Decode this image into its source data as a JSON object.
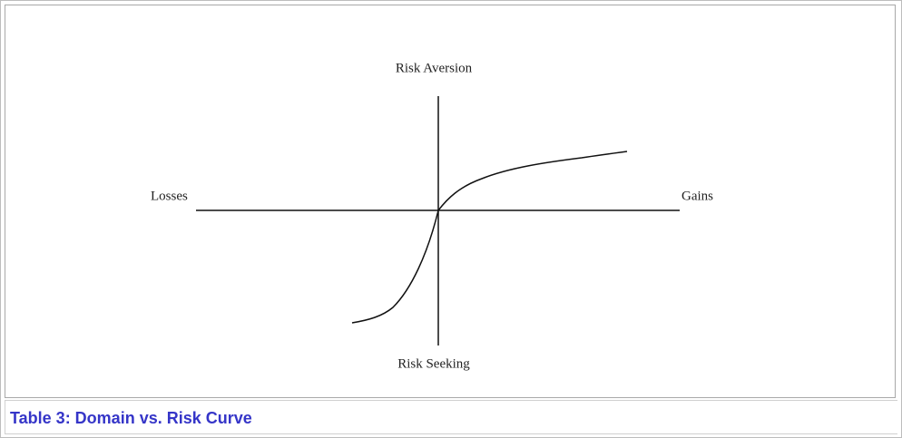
{
  "diagram": {
    "top_label": "Risk Aversion",
    "left_label": "Losses",
    "right_label": "Gains",
    "bottom_label": "Risk Seeking"
  },
  "caption": "Table 3: Domain vs. Risk Curve"
}
